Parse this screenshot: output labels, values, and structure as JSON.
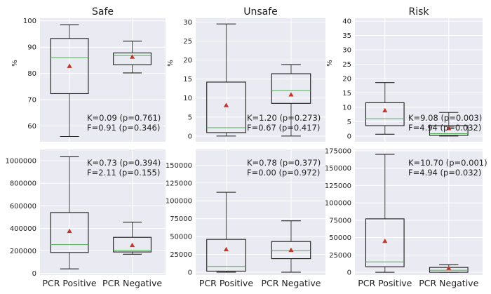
{
  "chart_data": [
    {
      "type": "box",
      "title": "Safe",
      "ylabel": "%",
      "categories": [
        "PCR Positive",
        "PCR Negative"
      ],
      "ylim": [
        54,
        101
      ],
      "yticks": [
        60,
        70,
        80,
        90,
        100
      ],
      "ytick_labels": [
        "60",
        "70",
        "80",
        "90",
        "100"
      ],
      "boxes": [
        {
          "whislo": 56,
          "q1": 72.3,
          "med": 86,
          "q3": 93.3,
          "whishi": 98.5,
          "mean": 82.8
        },
        {
          "whislo": 80.2,
          "q1": 83.3,
          "med": 86.8,
          "q3": 87.8,
          "whishi": 92.3,
          "mean": 86.3
        }
      ],
      "annotation": [
        "K=0.09  (p=0.761)",
        "F=0.91  (p=0.346)"
      ]
    },
    {
      "type": "box",
      "title": "Unsafe",
      "ylabel": "%",
      "categories": [
        "PCR Positive",
        "PCR Negative"
      ],
      "ylim": [
        -1.5,
        31
      ],
      "yticks": [
        0,
        5,
        10,
        15,
        20,
        25,
        30
      ],
      "ytick_labels": [
        "0",
        "5",
        "10",
        "15",
        "20",
        "25",
        "30"
      ],
      "boxes": [
        {
          "whislo": 0,
          "q1": 0.9,
          "med": 2.2,
          "q3": 14.2,
          "whishi": 29.5,
          "mean": 8.1
        },
        {
          "whislo": 0,
          "q1": 8.6,
          "med": 12,
          "q3": 16.4,
          "whishi": 18.8,
          "mean": 10.9
        }
      ],
      "annotation": [
        "K=1.20  (p=0.273)",
        "F=0.67  (p=0.417)"
      ]
    },
    {
      "type": "box",
      "title": "Risk",
      "ylabel": "%",
      "categories": [
        "PCR Positive",
        "PCR Negative"
      ],
      "ylim": [
        -2,
        41
      ],
      "yticks": [
        0,
        5,
        10,
        15,
        20,
        25,
        30,
        35,
        40
      ],
      "ytick_labels": [
        "0",
        "5",
        "10",
        "15",
        "20",
        "25",
        "30",
        "35",
        "40"
      ],
      "boxes": [
        {
          "whislo": 0.6,
          "q1": 3.6,
          "med": 6,
          "q3": 11.6,
          "whishi": 18.6,
          "mean": 8.9
        },
        {
          "whislo": 0,
          "q1": 0.2,
          "med": 0.8,
          "q3": 3.6,
          "whishi": 8.2,
          "mean": 2.7
        }
      ],
      "annotation": [
        "K=9.08  (p=0.003)",
        "F=4.94  (p=0.032)"
      ]
    },
    {
      "type": "box",
      "title": "",
      "ylabel": "",
      "categories": [
        "PCR Positive",
        "PCR Negative"
      ],
      "ylim": [
        -15000,
        1100000
      ],
      "yticks": [
        0,
        200000,
        400000,
        600000,
        800000,
        1000000
      ],
      "ytick_labels": [
        "0",
        "200000",
        "400000",
        "600000",
        "800000",
        "1000000"
      ],
      "boxes": [
        {
          "whislo": 40000,
          "q1": 185000,
          "med": 255000,
          "q3": 540000,
          "whishi": 1035000,
          "mean": 375000
        },
        {
          "whislo": 170000,
          "q1": 190000,
          "med": 205000,
          "q3": 320000,
          "whishi": 455000,
          "mean": 250000
        }
      ],
      "annotation": [
        "K=0.73  (p=0.394)",
        "F=2.11  (p=0.155)"
      ]
    },
    {
      "type": "box",
      "title": "",
      "ylabel": "",
      "categories": [
        "PCR Positive",
        "PCR Negative"
      ],
      "ylim": [
        -4000,
        172000
      ],
      "yticks": [
        0,
        25000,
        50000,
        75000,
        100000,
        125000,
        150000
      ],
      "ytick_labels": [
        "0",
        "25000",
        "50000",
        "75000",
        "100000",
        "125000",
        "150000"
      ],
      "boxes": [
        {
          "whislo": 0,
          "q1": 1500,
          "med": 8000,
          "q3": 46000,
          "whishi": 112000,
          "mean": 32000
        },
        {
          "whislo": 0,
          "q1": 19000,
          "med": 30000,
          "q3": 43000,
          "whishi": 72000,
          "mean": 31000
        }
      ],
      "annotation": [
        "K=0.78  (p=0.377)",
        "F=0.00  (p=0.972)"
      ]
    },
    {
      "type": "box",
      "title": "",
      "ylabel": "",
      "categories": [
        "PCR Positive",
        "PCR Negative"
      ],
      "ylim": [
        -4000,
        177000
      ],
      "yticks": [
        0,
        25000,
        50000,
        75000,
        100000,
        125000,
        150000,
        175000
      ],
      "ytick_labels": [
        "0",
        "25000",
        "50000",
        "75000",
        "100000",
        "125000",
        "150000",
        "175000"
      ],
      "boxes": [
        {
          "whislo": 0,
          "q1": 8000,
          "med": 15000,
          "q3": 77000,
          "whishi": 170000,
          "mean": 45000
        },
        {
          "whislo": 0,
          "q1": 0,
          "med": 3000,
          "q3": 7000,
          "whishi": 11000,
          "mean": 6000
        }
      ],
      "annotation": [
        "K=10.70  (p=0.001)",
        "F=4.94  (p=0.032)"
      ]
    }
  ],
  "colors": {
    "panel_background": "#eaeaf2",
    "grid": "#ffffff",
    "box_edge": "#1a1a1a",
    "whisker": "#555555",
    "median": "#4caf50",
    "mean_marker": "#c0392b"
  },
  "legend": "none",
  "grid": true
}
